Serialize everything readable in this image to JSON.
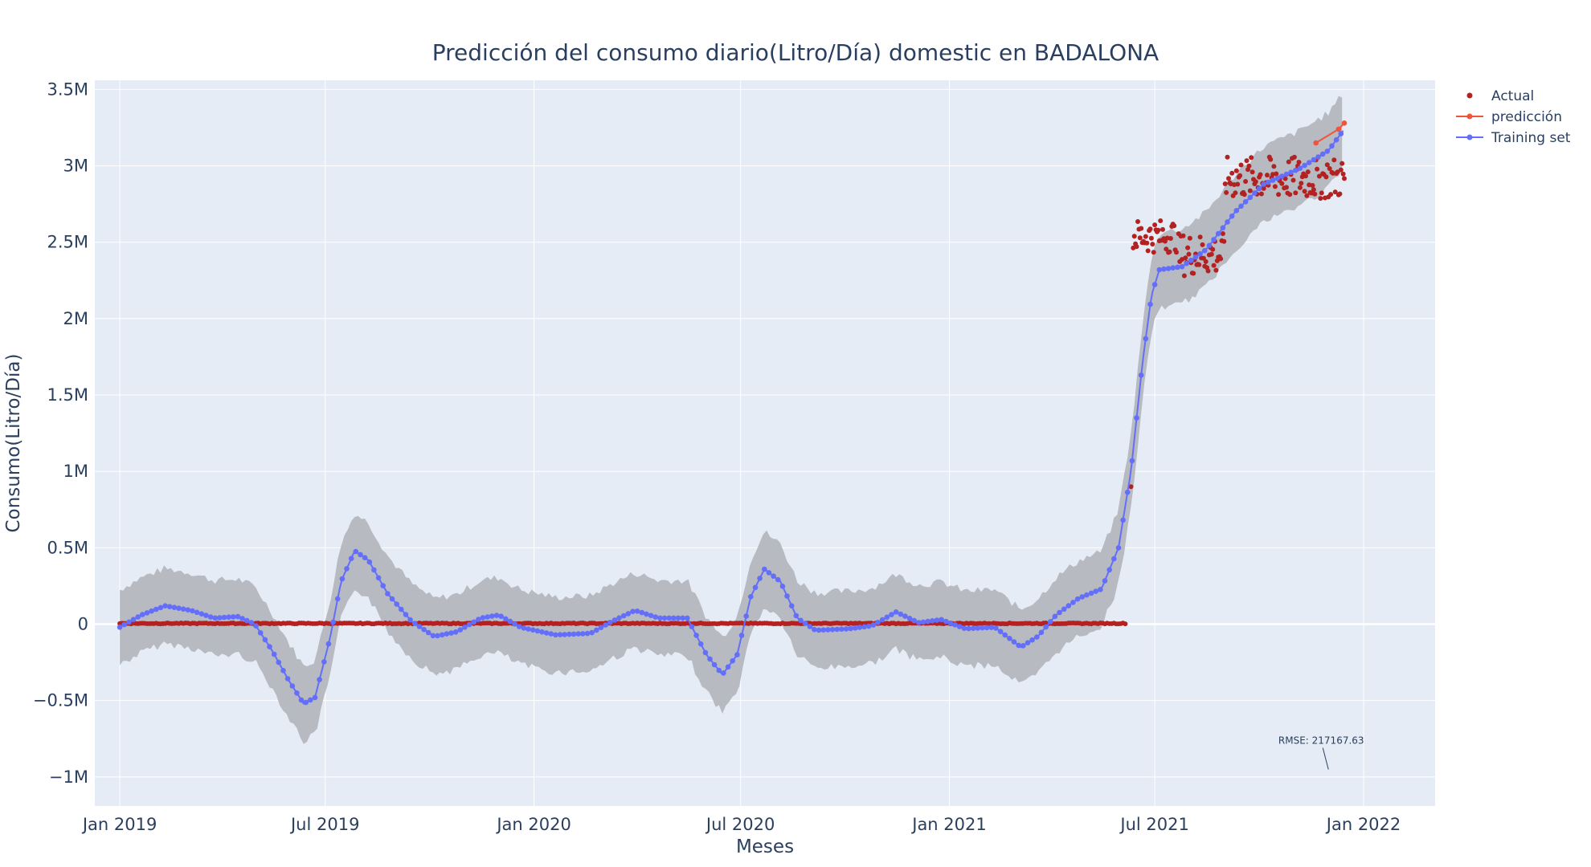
{
  "chart_data": {
    "type": "line",
    "title": "Predicción del consumo diario(Litro/Día) domestic en BADALONA",
    "xlabel": "Meses",
    "ylabel": "Consumo(Litro/Día)",
    "x_range": [
      "2018-12-10",
      "2022-03-05"
    ],
    "y_range": [
      -1190000,
      3560000
    ],
    "x_ticks": [
      {
        "date": "2019-01-01",
        "label": "Jan 2019"
      },
      {
        "date": "2019-07-01",
        "label": "Jul 2019"
      },
      {
        "date": "2020-01-01",
        "label": "Jan 2020"
      },
      {
        "date": "2020-07-01",
        "label": "Jul 2020"
      },
      {
        "date": "2021-01-01",
        "label": "Jan 2021"
      },
      {
        "date": "2021-07-01",
        "label": "Jul 2021"
      },
      {
        "date": "2022-01-01",
        "label": "Jan 2022"
      }
    ],
    "y_ticks": [
      {
        "value": -1000000,
        "label": "−1M"
      },
      {
        "value": -500000,
        "label": "−0.5M"
      },
      {
        "value": 0,
        "label": "0"
      },
      {
        "value": 500000,
        "label": "0.5M"
      },
      {
        "value": 1000000,
        "label": "1M"
      },
      {
        "value": 1500000,
        "label": "1.5M"
      },
      {
        "value": 2000000,
        "label": "2M"
      },
      {
        "value": 2500000,
        "label": "2.5M"
      },
      {
        "value": 3000000,
        "label": "3M"
      },
      {
        "value": 3500000,
        "label": "3.5M"
      }
    ],
    "grid": true,
    "legend_position": "top-right",
    "series": [
      {
        "name": "Actual",
        "mode": "markers",
        "color": "#b22222",
        "segments": [
          {
            "date_start": "2019-01-01",
            "date_end": "2021-06-05",
            "value": 5000,
            "noise": 3000
          },
          {
            "date_start": "2021-06-10",
            "date_end": "2021-06-10",
            "value": 900000,
            "noise": 0
          },
          {
            "date_start": "2021-06-12",
            "date_end": "2021-07-20",
            "value": 2540000,
            "noise": 110000
          },
          {
            "date_start": "2021-07-22",
            "date_end": "2021-08-31",
            "value": 2420000,
            "noise": 140000
          },
          {
            "date_start": "2021-09-01",
            "date_end": "2021-12-15",
            "value": 2920000,
            "noise": 140000
          }
        ]
      },
      {
        "name": "predicción",
        "mode": "lines+markers",
        "color": "#ef553b",
        "points": [
          {
            "date": "2021-11-20",
            "value": 3150000
          },
          {
            "date": "2021-12-10",
            "value": 3240000
          },
          {
            "date": "2021-12-15",
            "value": 3280000
          }
        ]
      },
      {
        "name": "Training set",
        "mode": "lines+markers",
        "color": "#636efa",
        "points": [
          {
            "date": "2019-01-01",
            "value": -20000
          },
          {
            "date": "2019-01-20",
            "value": 60000
          },
          {
            "date": "2019-02-10",
            "value": 120000
          },
          {
            "date": "2019-03-05",
            "value": 90000
          },
          {
            "date": "2019-03-25",
            "value": 40000
          },
          {
            "date": "2019-04-15",
            "value": 50000
          },
          {
            "date": "2019-04-30",
            "value": 0
          },
          {
            "date": "2019-05-15",
            "value": -170000
          },
          {
            "date": "2019-05-30",
            "value": -370000
          },
          {
            "date": "2019-06-12",
            "value": -520000
          },
          {
            "date": "2019-06-22",
            "value": -480000
          },
          {
            "date": "2019-07-05",
            "value": -100000
          },
          {
            "date": "2019-07-15",
            "value": 280000
          },
          {
            "date": "2019-07-27",
            "value": 480000
          },
          {
            "date": "2019-08-08",
            "value": 420000
          },
          {
            "date": "2019-08-25",
            "value": 200000
          },
          {
            "date": "2019-09-15",
            "value": 20000
          },
          {
            "date": "2019-10-05",
            "value": -80000
          },
          {
            "date": "2019-10-25",
            "value": -50000
          },
          {
            "date": "2019-11-15",
            "value": 40000
          },
          {
            "date": "2019-12-01",
            "value": 60000
          },
          {
            "date": "2019-12-20",
            "value": -20000
          },
          {
            "date": "2020-01-20",
            "value": -70000
          },
          {
            "date": "2020-02-20",
            "value": -60000
          },
          {
            "date": "2020-03-10",
            "value": 20000
          },
          {
            "date": "2020-03-30",
            "value": 90000
          },
          {
            "date": "2020-04-20",
            "value": 40000
          },
          {
            "date": "2020-05-15",
            "value": 40000
          },
          {
            "date": "2020-06-01",
            "value": -200000
          },
          {
            "date": "2020-06-15",
            "value": -330000
          },
          {
            "date": "2020-06-28",
            "value": -200000
          },
          {
            "date": "2020-07-10",
            "value": 180000
          },
          {
            "date": "2020-07-22",
            "value": 360000
          },
          {
            "date": "2020-08-05",
            "value": 280000
          },
          {
            "date": "2020-08-20",
            "value": 40000
          },
          {
            "date": "2020-09-05",
            "value": -40000
          },
          {
            "date": "2020-10-05",
            "value": -30000
          },
          {
            "date": "2020-10-25",
            "value": -10000
          },
          {
            "date": "2020-11-15",
            "value": 80000
          },
          {
            "date": "2020-12-05",
            "value": 10000
          },
          {
            "date": "2020-12-25",
            "value": 30000
          },
          {
            "date": "2021-01-15",
            "value": -30000
          },
          {
            "date": "2021-02-10",
            "value": -20000
          },
          {
            "date": "2021-03-05",
            "value": -150000
          },
          {
            "date": "2021-03-20",
            "value": -80000
          },
          {
            "date": "2021-04-05",
            "value": 60000
          },
          {
            "date": "2021-04-25",
            "value": 170000
          },
          {
            "date": "2021-05-15",
            "value": 230000
          },
          {
            "date": "2021-05-30",
            "value": 500000
          },
          {
            "date": "2021-06-10",
            "value": 1000000
          },
          {
            "date": "2021-06-20",
            "value": 1700000
          },
          {
            "date": "2021-06-28",
            "value": 2150000
          },
          {
            "date": "2021-07-05",
            "value": 2320000
          },
          {
            "date": "2021-07-25",
            "value": 2340000
          },
          {
            "date": "2021-08-15",
            "value": 2450000
          },
          {
            "date": "2021-09-10",
            "value": 2700000
          },
          {
            "date": "2021-10-05",
            "value": 2880000
          },
          {
            "date": "2021-11-05",
            "value": 2980000
          },
          {
            "date": "2021-12-01",
            "value": 3100000
          },
          {
            "date": "2021-12-15",
            "value": 3240000
          }
        ]
      }
    ],
    "confidence_band": {
      "color": "#b4b7bd",
      "width": 270000
    },
    "annotations": [
      {
        "text": "RMSE: 217167.63",
        "date": "2021-12-01",
        "value": -720000
      }
    ]
  }
}
